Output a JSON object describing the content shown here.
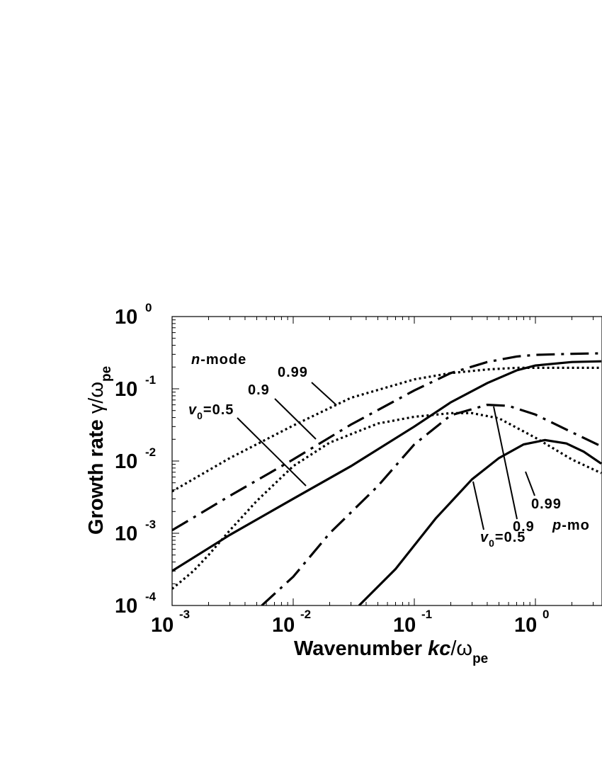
{
  "chart_data": {
    "type": "line",
    "x_scale": "log",
    "y_scale": "log",
    "xlim": [
      0.001,
      3.5
    ],
    "ylim": [
      0.0001,
      1
    ],
    "xlabel": {
      "main": "Wavenumber ",
      "italic": "kc",
      "slash": "/ω",
      "sub": "pe"
    },
    "ylabel": {
      "main": "Growth rate ",
      "symbol": "γ/ω",
      "sub": "pe"
    },
    "x_ticks": [
      {
        "value": 0.001,
        "base": "10",
        "exp": "-3"
      },
      {
        "value": 0.01,
        "base": "10",
        "exp": "-2"
      },
      {
        "value": 0.1,
        "base": "10",
        "exp": "-1"
      },
      {
        "value": 1,
        "base": "10",
        "exp": "0"
      }
    ],
    "y_ticks": [
      {
        "value": 1,
        "base": "10",
        "exp": "0"
      },
      {
        "value": 0.1,
        "base": "10",
        "exp": "-1"
      },
      {
        "value": 0.01,
        "base": "10",
        "exp": "-2"
      },
      {
        "value": 0.001,
        "base": "10",
        "exp": "-3"
      },
      {
        "value": 0.0001,
        "base": "10",
        "exp": "-4"
      }
    ],
    "series": [
      {
        "mode": "n",
        "v0": "0.5",
        "style": "solid",
        "x": [
          0.001,
          0.003,
          0.01,
          0.03,
          0.1,
          0.2,
          0.4,
          0.7,
          1,
          2,
          3.5
        ],
        "y": [
          0.0003,
          0.00095,
          0.003,
          0.0085,
          0.03,
          0.065,
          0.12,
          0.18,
          0.21,
          0.235,
          0.24
        ]
      },
      {
        "mode": "n",
        "v0": "0.9",
        "style": "dash-dot",
        "x": [
          0.001,
          0.003,
          0.01,
          0.03,
          0.1,
          0.2,
          0.4,
          0.7,
          1,
          2,
          3.5
        ],
        "y": [
          0.0011,
          0.0033,
          0.0105,
          0.032,
          0.095,
          0.165,
          0.235,
          0.28,
          0.295,
          0.305,
          0.31
        ]
      },
      {
        "mode": "n",
        "v0": "0.99",
        "style": "dotted",
        "x": [
          0.001,
          0.003,
          0.01,
          0.03,
          0.1,
          0.2,
          0.4,
          0.7,
          1,
          2,
          3.5
        ],
        "y": [
          0.0038,
          0.011,
          0.031,
          0.075,
          0.135,
          0.165,
          0.185,
          0.195,
          0.195,
          0.195,
          0.195
        ]
      },
      {
        "mode": "p",
        "v0": "0.5",
        "style": "solid",
        "x": [
          0.035,
          0.07,
          0.15,
          0.3,
          0.5,
          0.8,
          1.2,
          1.8,
          2.5,
          3.5
        ],
        "y": [
          0.0001,
          0.00032,
          0.0016,
          0.0056,
          0.011,
          0.017,
          0.0195,
          0.0175,
          0.0135,
          0.0092
        ]
      },
      {
        "mode": "p",
        "v0": "0.9",
        "style": "dash-dot",
        "x": [
          0.0055,
          0.01,
          0.02,
          0.05,
          0.1,
          0.2,
          0.4,
          0.6,
          1,
          2,
          3.5
        ],
        "y": [
          0.0001,
          0.00025,
          0.001,
          0.0045,
          0.017,
          0.043,
          0.06,
          0.058,
          0.044,
          0.025,
          0.016
        ]
      },
      {
        "mode": "p",
        "v0": "0.99",
        "style": "dotted",
        "x": [
          0.001,
          0.0015,
          0.002,
          0.003,
          0.005,
          0.01,
          0.02,
          0.05,
          0.1,
          0.2,
          0.3,
          0.5,
          1,
          2,
          3.5
        ],
        "y": [
          0.00017,
          0.0003,
          0.0005,
          0.0011,
          0.0028,
          0.0085,
          0.018,
          0.033,
          0.041,
          0.046,
          0.046,
          0.039,
          0.021,
          0.0105,
          0.0068
        ]
      }
    ],
    "annotations": {
      "n_mode": {
        "italic": "n",
        "rest": "-mode"
      },
      "p_mode": {
        "italic": "p",
        "rest": "-mo"
      },
      "n_099": "0.99",
      "n_09": "0.9",
      "n_v0": {
        "v": "v",
        "sub": "0",
        "rest": "=0.5"
      },
      "p_099": "0.99",
      "p_09": "0.9",
      "p_v0": {
        "v": "v",
        "sub": "0",
        "rest": "=0.5"
      }
    }
  }
}
